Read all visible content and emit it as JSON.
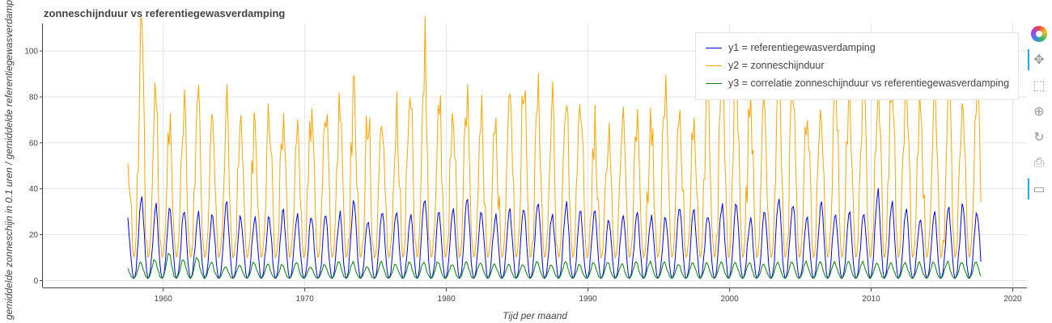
{
  "chart_data": {
    "type": "line",
    "title": "zonneschijnduur vs referentiegewasverdamping",
    "xlabel": "Tijd per maand",
    "ylabel": "gemiddelde zonneschijn in 0.1 uren / gemiddelde referentiegewasverdamping",
    "xlim": [
      1951.5,
      2021
    ],
    "ylim": [
      -3,
      112
    ],
    "x_start": 1957.5,
    "x_end": 2017.8,
    "x_ticks": [
      1960,
      1970,
      1980,
      1990,
      2000,
      2010,
      2020
    ],
    "y_ticks": [
      0,
      20,
      40,
      60,
      80,
      100
    ],
    "grid": true,
    "legend_position": "top-right",
    "series": [
      {
        "name": "y1 = referentiegewasverdamping",
        "color": "#0000ff",
        "annual_peaks": [
          27,
          36,
          32,
          31,
          30,
          30,
          29,
          33,
          28,
          28,
          28,
          30,
          28,
          28,
          28,
          29,
          35,
          26,
          30,
          30,
          28,
          36,
          30,
          32,
          35,
          30,
          28,
          30,
          31,
          34,
          29,
          33,
          30,
          30,
          26,
          28,
          29,
          28,
          27,
          31,
          30,
          28,
          32,
          33,
          27,
          30,
          35,
          34,
          28,
          33,
          29,
          30,
          28,
          39,
          33,
          31,
          27,
          30,
          31,
          33,
          30,
          30,
          32,
          32,
          30,
          31,
          32,
          30,
          30,
          30,
          30,
          30,
          30,
          33,
          33,
          30,
          32,
          32,
          30,
          32
        ],
        "winter_low": 1
      },
      {
        "name": "y2 = zonneschijnduur",
        "color": "#ffa500",
        "annual_peaks": [
          61,
          101,
          79,
          73,
          80,
          75,
          70,
          77,
          70,
          72,
          73,
          70,
          74,
          72,
          77,
          72,
          86,
          74,
          72,
          75,
          90,
          98,
          85,
          75,
          80,
          73,
          72,
          79,
          87,
          83,
          76,
          81,
          75,
          66,
          61,
          74,
          72,
          70,
          85,
          77,
          73,
          90,
          106,
          88,
          84,
          77,
          79,
          88,
          76,
          76,
          88,
          82,
          92,
          86,
          90,
          88,
          75,
          87,
          88,
          85,
          88,
          84,
          87,
          85,
          82,
          86,
          86,
          83,
          88,
          82,
          82,
          84,
          82,
          84,
          85,
          88,
          85,
          82,
          85,
          78
        ],
        "winter_low": 10
      },
      {
        "name": "y3 = correlatie zonneschijnduur vs referentiegewasverdamping",
        "color": "#008000",
        "annual_peaks": [
          6,
          8,
          9,
          12,
          9,
          10,
          8,
          6,
          7,
          8,
          7,
          7,
          8,
          6,
          7,
          8,
          8,
          6,
          8,
          7,
          8,
          8,
          8,
          7,
          8,
          8,
          7,
          7,
          7,
          8,
          7,
          8,
          7,
          8,
          8,
          7,
          8,
          8,
          8,
          7,
          8,
          8,
          8,
          8,
          8,
          7,
          8,
          8,
          8,
          8,
          8,
          8,
          8,
          8,
          8,
          8,
          8,
          8,
          8,
          8,
          8,
          8,
          8,
          9,
          8,
          8,
          8,
          9,
          8,
          8,
          8,
          8,
          8,
          8,
          8,
          9,
          8,
          8,
          8,
          8
        ],
        "winter_low": 1
      }
    ]
  },
  "toolbar": {
    "tools": [
      {
        "name": "bokeh-logo-icon",
        "glyph": ""
      },
      {
        "name": "pan-tool-icon",
        "glyph": "✥"
      },
      {
        "name": "box-zoom-tool-icon",
        "glyph": "⬚"
      },
      {
        "name": "wheel-zoom-tool-icon",
        "glyph": "⊕"
      },
      {
        "name": "reset-tool-icon",
        "glyph": "↻"
      },
      {
        "name": "save-tool-icon",
        "glyph": "⎙"
      },
      {
        "name": "hover-tool-icon",
        "glyph": "▭"
      }
    ]
  }
}
